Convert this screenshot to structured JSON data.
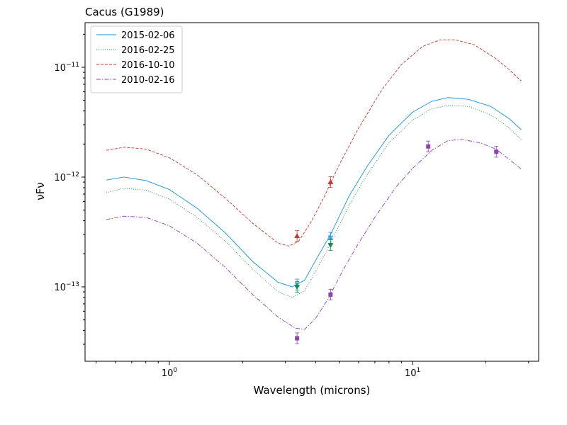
{
  "chart_data": {
    "type": "line",
    "title": "Cacus (G1989)",
    "xlabel": "Wavelength (microns)",
    "ylabel": "νFν",
    "xscale": "log",
    "yscale": "log",
    "xlim": [
      0.45,
      33
    ],
    "ylim": [
      2.1e-14,
      2.55e-11
    ],
    "x_ticks": [
      {
        "value": 1,
        "base": "10",
        "exp": "0"
      },
      {
        "value": 10,
        "base": "10",
        "exp": "1"
      }
    ],
    "y_ticks": [
      {
        "value": 1e-13,
        "base": "10",
        "exp": "−13"
      },
      {
        "value": 1e-12,
        "base": "10",
        "exp": "−12"
      },
      {
        "value": 1e-11,
        "base": "10",
        "exp": "−11"
      }
    ],
    "legend_position": "top-left",
    "series": [
      {
        "name": "2015-02-06",
        "color": "#1f8fd0",
        "dash": "solid",
        "curve": [
          [
            0.55,
            9.4e-13
          ],
          [
            0.65,
            1e-12
          ],
          [
            0.8,
            9.3e-13
          ],
          [
            1.0,
            7.7e-13
          ],
          [
            1.3,
            5.2e-13
          ],
          [
            1.7,
            3.1e-13
          ],
          [
            2.2,
            1.7e-13
          ],
          [
            2.8,
            1.1e-13
          ],
          [
            3.2,
            1e-13
          ],
          [
            3.6,
            1.15e-13
          ],
          [
            4.0,
            1.75e-13
          ],
          [
            4.6,
            3e-13
          ],
          [
            5.5,
            6.8e-13
          ],
          [
            6.5,
            1.25e-12
          ],
          [
            8.0,
            2.4e-12
          ],
          [
            10.0,
            3.9e-12
          ],
          [
            12.0,
            4.9e-12
          ],
          [
            14.0,
            5.3e-12
          ],
          [
            17.0,
            5.1e-12
          ],
          [
            21.0,
            4.4e-12
          ],
          [
            25.0,
            3.4e-12
          ],
          [
            28.0,
            2.7e-12
          ]
        ],
        "points": [
          [
            3.35,
            1.05e-13
          ],
          [
            4.6,
            2.8e-13
          ]
        ],
        "marker": "x"
      },
      {
        "name": "2016-02-25",
        "color": "#1a8a4a",
        "dash": "dotted",
        "curve": [
          [
            0.55,
            7.2e-13
          ],
          [
            0.65,
            7.9e-13
          ],
          [
            0.8,
            7.6e-13
          ],
          [
            1.0,
            6.3e-13
          ],
          [
            1.3,
            4.3e-13
          ],
          [
            1.7,
            2.6e-13
          ],
          [
            2.2,
            1.45e-13
          ],
          [
            2.8,
            9e-14
          ],
          [
            3.2,
            8e-14
          ],
          [
            3.6,
            9.2e-14
          ],
          [
            4.0,
            1.4e-13
          ],
          [
            4.6,
            2.5e-13
          ],
          [
            5.5,
            5.6e-13
          ],
          [
            6.5,
            1.05e-12
          ],
          [
            8.0,
            2.05e-12
          ],
          [
            10.0,
            3.3e-12
          ],
          [
            12.0,
            4.2e-12
          ],
          [
            14.0,
            4.5e-12
          ],
          [
            17.0,
            4.4e-12
          ],
          [
            21.0,
            3.7e-12
          ],
          [
            25.0,
            2.8e-12
          ],
          [
            28.0,
            2.2e-12
          ]
        ],
        "points": [
          [
            3.35,
            1e-13
          ],
          [
            4.6,
            2.4e-13
          ]
        ],
        "marker": "triangle-down"
      },
      {
        "name": "2016-10-10",
        "color": "#c0392b",
        "dash": "dashed",
        "curve": [
          [
            0.55,
            1.75e-12
          ],
          [
            0.65,
            1.87e-12
          ],
          [
            0.8,
            1.8e-12
          ],
          [
            1.0,
            1.5e-12
          ],
          [
            1.3,
            1.05e-12
          ],
          [
            1.7,
            6.4e-13
          ],
          [
            2.2,
            3.8e-13
          ],
          [
            2.8,
            2.5e-13
          ],
          [
            3.1,
            2.35e-13
          ],
          [
            3.4,
            2.6e-13
          ],
          [
            3.8,
            3.8e-13
          ],
          [
            4.3,
            6.4e-13
          ],
          [
            5.0,
            1.3e-12
          ],
          [
            6.0,
            2.8e-12
          ],
          [
            7.5,
            6.3e-12
          ],
          [
            9.0,
            1.06e-11
          ],
          [
            11.0,
            1.55e-11
          ],
          [
            13.0,
            1.78e-11
          ],
          [
            15.0,
            1.78e-11
          ],
          [
            18.0,
            1.6e-11
          ],
          [
            22.0,
            1.2e-11
          ],
          [
            25.0,
            9.5e-12
          ],
          [
            28.0,
            7.5e-12
          ]
        ],
        "points": [
          [
            3.35,
            2.9e-13
          ],
          [
            4.6,
            9e-13
          ]
        ],
        "marker": "triangle-up"
      },
      {
        "name": "2010-02-16",
        "color": "#8e44ad",
        "dash": "dashdot",
        "curve": [
          [
            0.55,
            4.1e-13
          ],
          [
            0.65,
            4.4e-13
          ],
          [
            0.8,
            4.3e-13
          ],
          [
            1.0,
            3.6e-13
          ],
          [
            1.3,
            2.5e-13
          ],
          [
            1.7,
            1.5e-13
          ],
          [
            2.2,
            8.5e-14
          ],
          [
            2.8,
            5.3e-14
          ],
          [
            3.3,
            4.2e-14
          ],
          [
            3.6,
            4.1e-14
          ],
          [
            4.0,
            5.2e-14
          ],
          [
            4.5,
            7.8e-14
          ],
          [
            5.2,
            1.45e-13
          ],
          [
            6.0,
            2.5e-13
          ],
          [
            7.0,
            4.3e-13
          ],
          [
            8.5,
            8e-13
          ],
          [
            10.0,
            1.2e-12
          ],
          [
            12.0,
            1.75e-12
          ],
          [
            14.0,
            2.15e-12
          ],
          [
            16.0,
            2.2e-12
          ],
          [
            19.0,
            2.05e-12
          ],
          [
            22.0,
            1.8e-12
          ],
          [
            25.0,
            1.45e-12
          ],
          [
            28.0,
            1.18e-12
          ]
        ],
        "points": [
          [
            3.35,
            3.4e-14
          ],
          [
            4.6,
            8.5e-14
          ],
          [
            11.6,
            1.9e-12
          ],
          [
            22.1,
            1.7e-12
          ]
        ],
        "marker": "square"
      }
    ]
  }
}
